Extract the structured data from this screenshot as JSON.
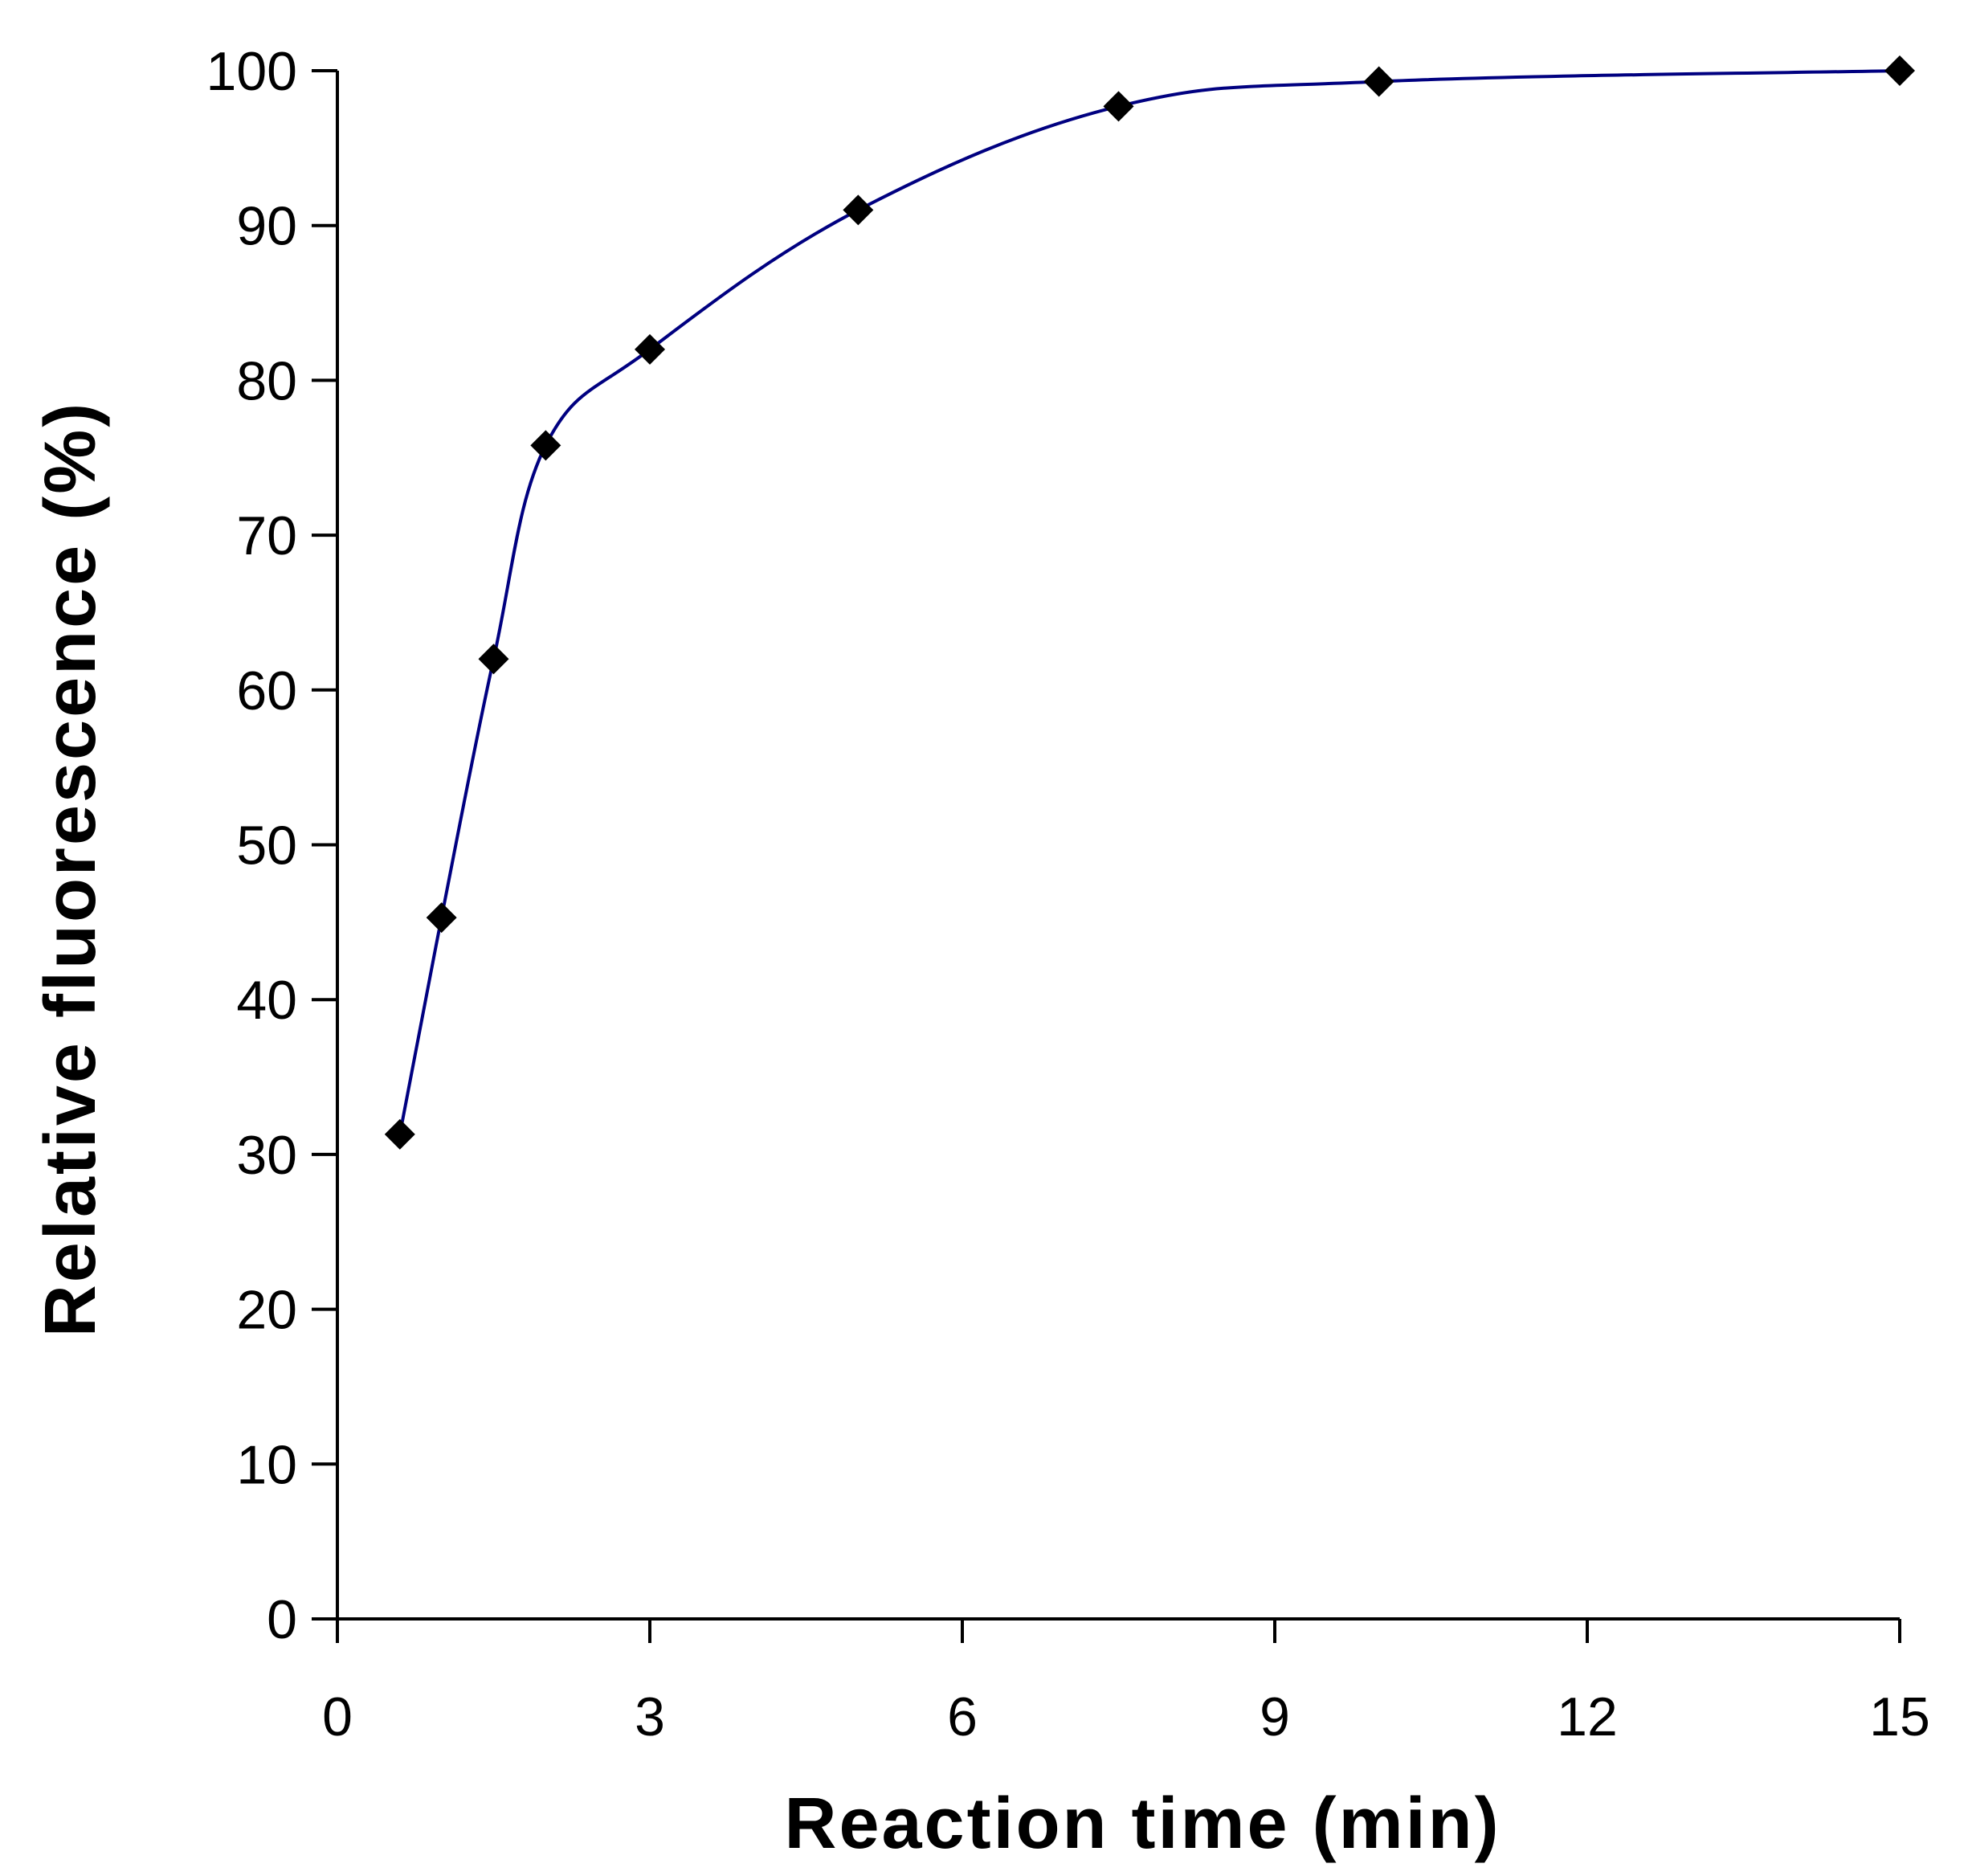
{
  "chart_data": {
    "type": "line",
    "xlabel": "Reaction time (min)",
    "ylabel": "Relative fluorescence (%)",
    "xlim": [
      0,
      15
    ],
    "ylim": [
      0,
      100
    ],
    "x_ticks": [
      0,
      3,
      6,
      9,
      12,
      15
    ],
    "y_ticks": [
      0,
      10,
      20,
      30,
      40,
      50,
      60,
      70,
      80,
      90,
      100
    ],
    "grid": false,
    "legend": "none",
    "series": [
      {
        "line_color": "#000080",
        "marker_color": "#000000",
        "marker": "diamond",
        "x": [
          0.6,
          1.0,
          1.5,
          2.0,
          3.0,
          5.0,
          7.5,
          10.0,
          15.0
        ],
        "y": [
          31.3,
          45.3,
          62.0,
          75.8,
          82.0,
          91.0,
          97.7,
          99.3,
          100.0
        ]
      }
    ]
  }
}
